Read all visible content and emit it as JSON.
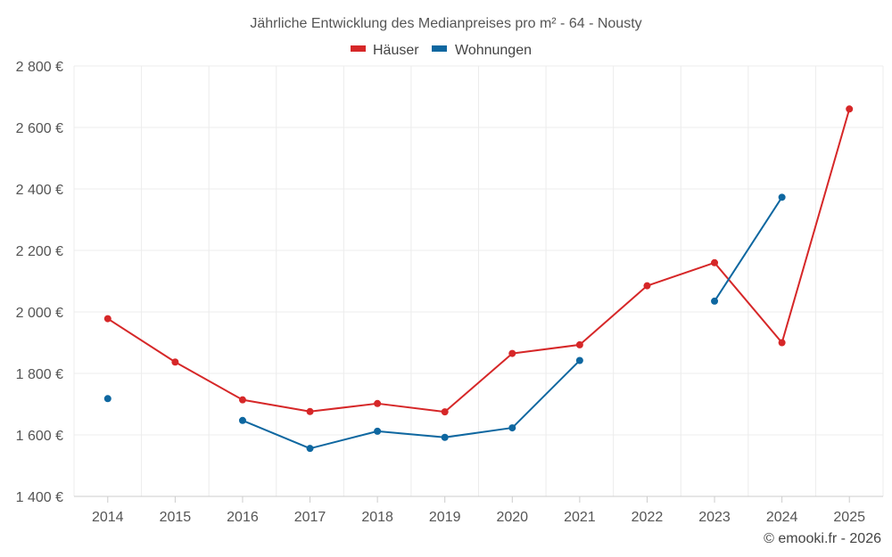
{
  "chart_data": {
    "type": "line",
    "title": "Jährliche Entwicklung des Medianpreises pro m² - 64 - Nousty",
    "xlabel": "",
    "ylabel": "",
    "categories": [
      "2014",
      "2015",
      "2016",
      "2017",
      "2018",
      "2019",
      "2020",
      "2021",
      "2022",
      "2023",
      "2024",
      "2025"
    ],
    "ylim": [
      1400,
      2800
    ],
    "yticks": [
      1400,
      1600,
      1800,
      2000,
      2200,
      2400,
      2600,
      2800
    ],
    "ytick_labels": [
      "1 400 €",
      "1 600 €",
      "1 800 €",
      "2 000 €",
      "2 200 €",
      "2 400 €",
      "2 600 €",
      "2 800 €"
    ],
    "grid": true,
    "legend_position": "top-center",
    "series": [
      {
        "name": "Häuser",
        "color": "#d62728",
        "values": [
          1978,
          1837,
          1714,
          1676,
          1702,
          1675,
          1865,
          1893,
          2085,
          2160,
          1900,
          2660
        ]
      },
      {
        "name": "Wohnungen",
        "color": "#0e67a0",
        "values": [
          1718,
          null,
          1647,
          1556,
          1612,
          1592,
          1623,
          1842,
          null,
          2035,
          2373,
          null
        ]
      }
    ],
    "credit": "© emooki.fr - 2026"
  }
}
